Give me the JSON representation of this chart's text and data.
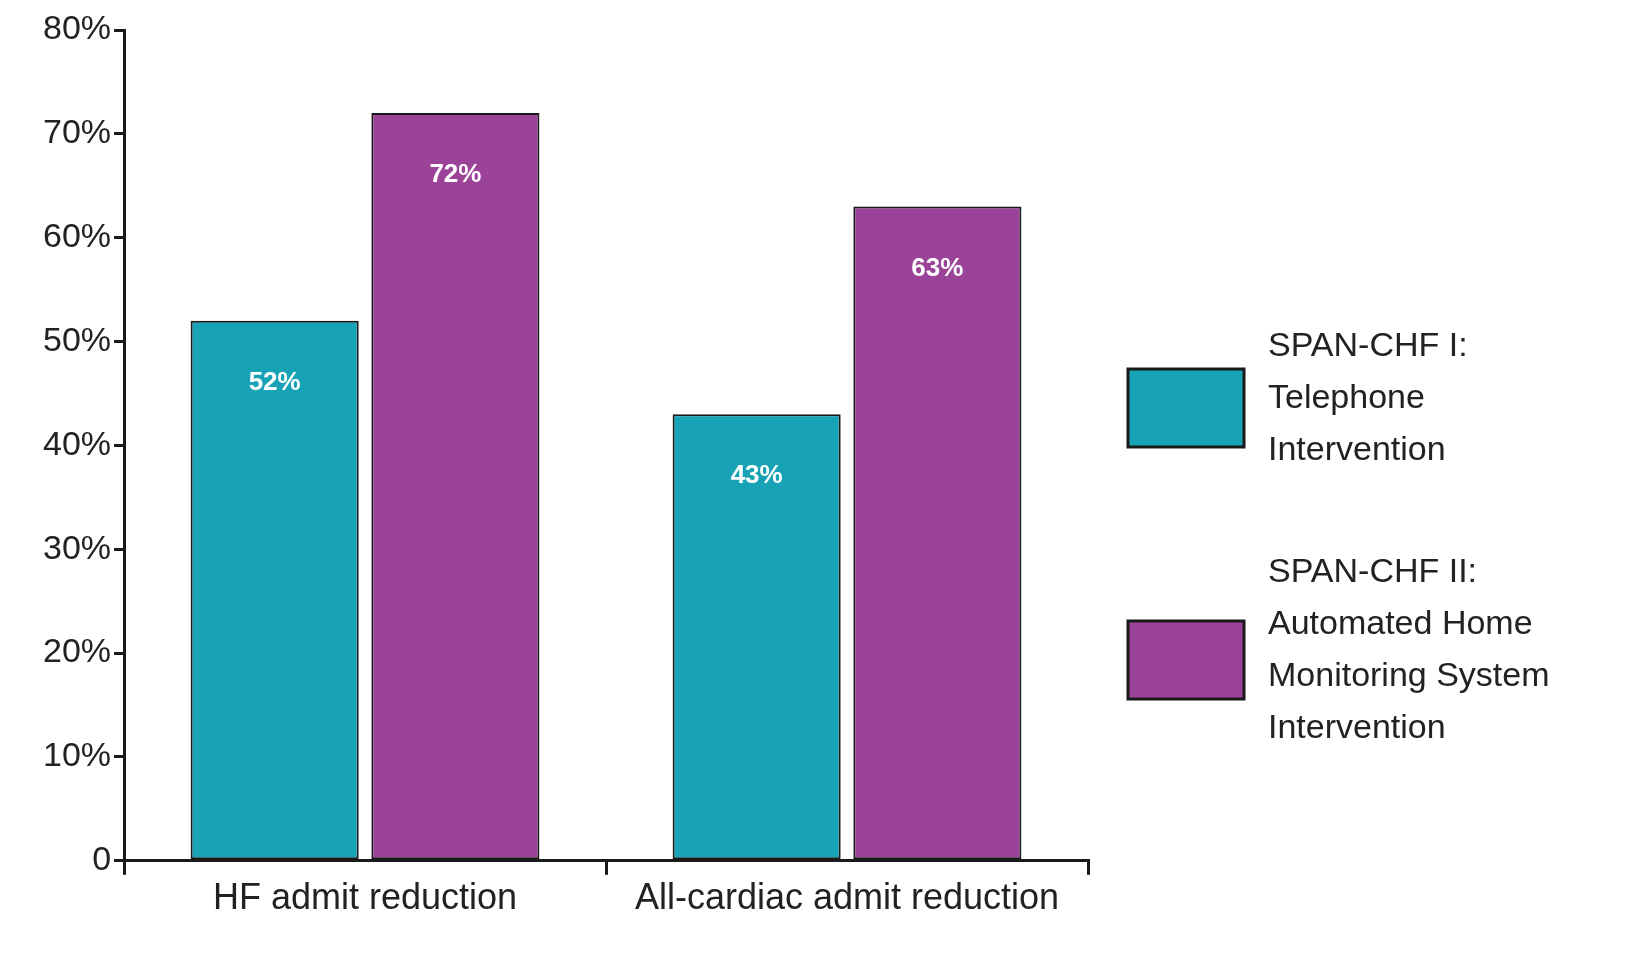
{
  "chart_data": {
    "type": "bar",
    "categories": [
      "HF admit reduction",
      "All-cardiac admit reduction"
    ],
    "series": [
      {
        "name": "SPAN-CHF I: Telephone Intervention",
        "color": "#17a3b5",
        "values": [
          52,
          43
        ],
        "value_labels": [
          "52%",
          "43%"
        ]
      },
      {
        "name": "SPAN-CHF II: Automated Home Monitoring System Intervention",
        "color": "#9b4398",
        "values": [
          72,
          63
        ],
        "value_labels": [
          "72%",
          "63%"
        ]
      }
    ],
    "ylim": [
      0,
      80
    ],
    "yticks": [
      0,
      {
        "value": 10,
        "label": "10%"
      },
      {
        "value": 20,
        "label": "20%"
      },
      {
        "value": 30,
        "label": "30%"
      },
      {
        "value": 40,
        "label": "40%"
      },
      {
        "value": 50,
        "label": "50%"
      },
      {
        "value": 60,
        "label": "60%"
      },
      {
        "value": 70,
        "label": "70%"
      },
      {
        "value": 80,
        "label": "80%"
      }
    ],
    "grid": false,
    "legend": "right"
  }
}
